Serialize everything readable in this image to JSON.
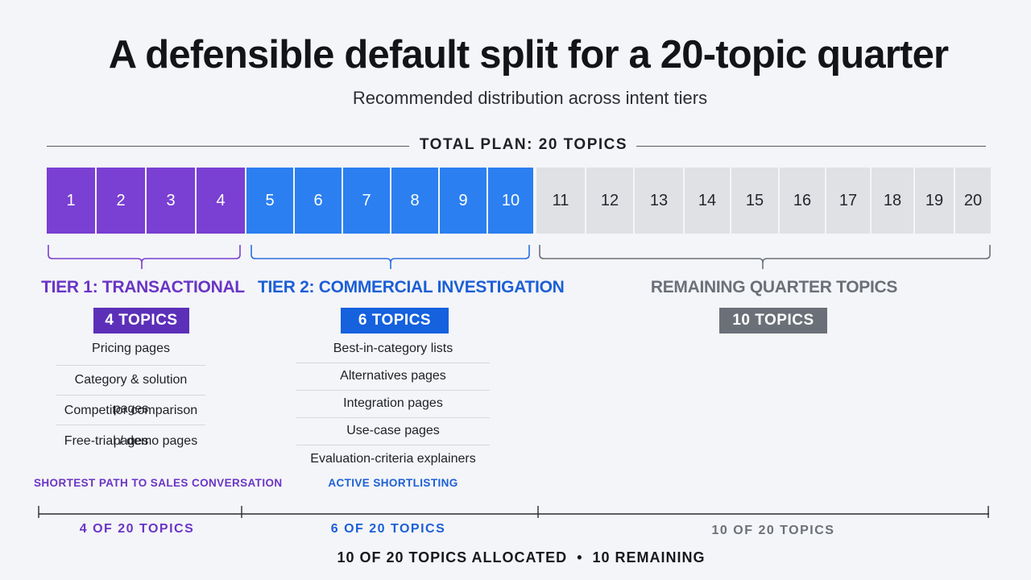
{
  "title": "A defensible default split for a 20-topic quarter",
  "subtitle": "Recommended distribution across intent tiers",
  "total_label": "TOTAL PLAN: 20 TOPICS",
  "colors": {
    "tier1": "#7a3fd3",
    "tier1_text": "#6a35c4",
    "tier1_badge": "#5c2fb8",
    "tier2": "#2b7ff0",
    "tier2_text": "#1c5fd6",
    "tier2_badge": "#1561de",
    "remaining": "#dfe1e5",
    "remaining_text": "#6b7078",
    "remaining_badge": "#6b7078"
  },
  "cells": [
    "1",
    "2",
    "3",
    "4",
    "5",
    "6",
    "7",
    "8",
    "9",
    "10",
    "11",
    "12",
    "13",
    "14",
    "15",
    "16",
    "17",
    "18",
    "19",
    "20"
  ],
  "tiers": [
    {
      "title": "TIER 1: TRANSACTIONAL",
      "badge": "4 TOPICS",
      "items": [
        "Pricing pages",
        "Category & solution pages",
        "Competitor comparison pages",
        "Free-trial / demo pages"
      ],
      "tagline": "SHORTEST PATH TO SALES CONVERSATION",
      "count": "4 OF 20 TOPICS"
    },
    {
      "title": "TIER 2: COMMERCIAL INVESTIGATION",
      "badge": "6 TOPICS",
      "items": [
        "Best-in-category lists",
        "Alternatives pages",
        "Integration pages",
        "Use-case pages",
        "Evaluation-criteria explainers"
      ],
      "tagline": "ACTIVE SHORTLISTING",
      "count": "6 OF 20 TOPICS"
    },
    {
      "title": "REMAINING QUARTER TOPICS",
      "badge": "10 TOPICS",
      "count": "10 OF 20 TOPICS"
    }
  ],
  "footer": {
    "allocated": "10 OF 20 TOPICS ALLOCATED",
    "separator": "•",
    "remaining": "10 REMAINING"
  }
}
